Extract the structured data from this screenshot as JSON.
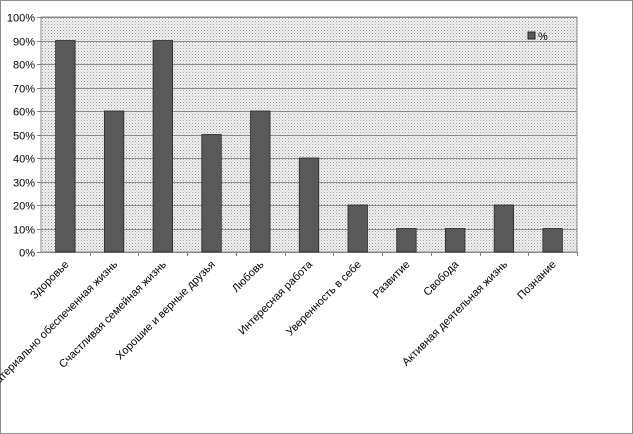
{
  "chart_data": {
    "type": "bar",
    "categories": [
      "Здоровье",
      "Материально обеспеченная жизнь",
      "Счастливая семейная жизнь",
      "Хорошие и верные друзья",
      "Любовь",
      "Интересная работа",
      "Уверенность в себе",
      "Развитие",
      "Свобода",
      "Активная деятельная жизнь",
      "Познание"
    ],
    "series": [
      {
        "name": "%",
        "values": [
          90,
          60,
          90,
          50,
          60,
          40,
          20,
          10,
          10,
          20,
          10
        ]
      }
    ],
    "yticks": [
      "0%",
      "10%",
      "20%",
      "30%",
      "40%",
      "50%",
      "60%",
      "70%",
      "80%",
      "90%",
      "100%"
    ],
    "ylim": [
      0,
      100
    ],
    "grid": true,
    "legend_position": "top-right",
    "colors": {
      "bar": "#595959",
      "bar_edge": "#262626",
      "plot_bg": "#e6e6e6",
      "grid": "#8a8a8a"
    }
  }
}
